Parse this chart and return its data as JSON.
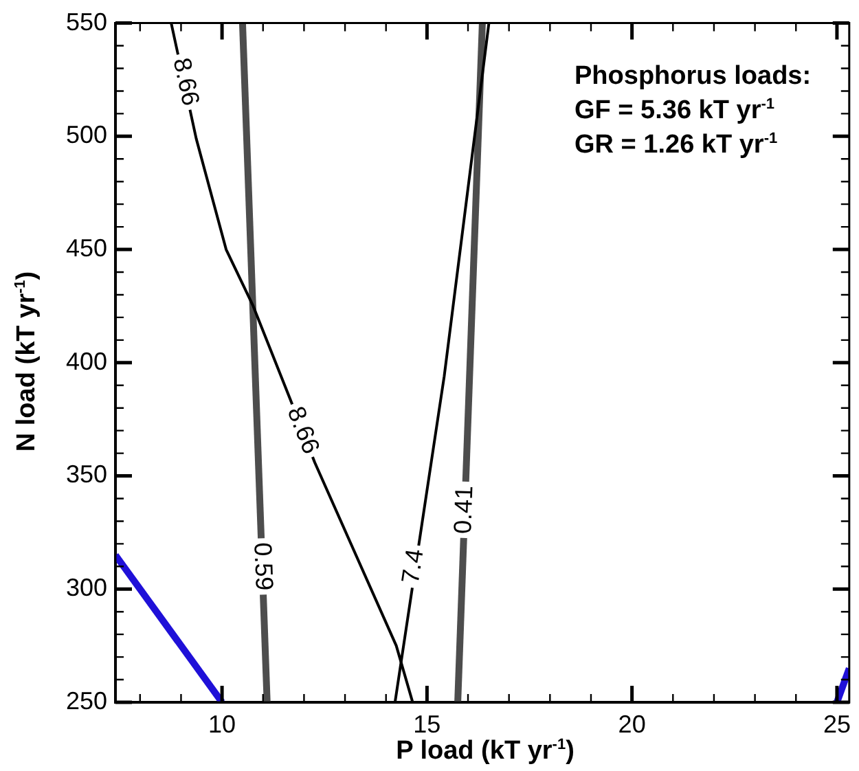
{
  "chart_data": {
    "type": "line",
    "xlabel": "P load (kT yr$^{-1}$)",
    "ylabel": "N load (kT yr$^{-1}$)",
    "xlim": [
      7.4,
      25.3
    ],
    "ylim": [
      250,
      550
    ],
    "xticks": [
      {
        "value": 8,
        "label": null
      },
      {
        "value": 9,
        "label": null
      },
      10,
      {
        "value": 11,
        "label": null
      },
      {
        "value": 12,
        "label": null
      },
      {
        "value": 13,
        "label": null
      },
      {
        "value": 14,
        "label": null
      },
      15,
      {
        "value": 16,
        "label": null
      },
      {
        "value": 17,
        "label": null
      },
      {
        "value": 18,
        "label": null
      },
      {
        "value": 19,
        "label": null
      },
      20,
      {
        "value": 21,
        "label": null
      },
      {
        "value": 22,
        "label": null
      },
      {
        "value": 23,
        "label": null
      },
      {
        "value": 24,
        "label": null
      },
      25
    ],
    "yticks": [
      250,
      {
        "value": 260,
        "label": null
      },
      {
        "value": 270,
        "label": null
      },
      {
        "value": 280,
        "label": null
      },
      {
        "value": 290,
        "label": null
      },
      300,
      {
        "value": 310,
        "label": null
      },
      {
        "value": 320,
        "label": null
      },
      {
        "value": 330,
        "label": null
      },
      {
        "value": 340,
        "label": null
      },
      350,
      {
        "value": 360,
        "label": null
      },
      {
        "value": 370,
        "label": null
      },
      {
        "value": 380,
        "label": null
      },
      {
        "value": 390,
        "label": null
      },
      400,
      {
        "value": 410,
        "label": null
      },
      {
        "value": 420,
        "label": null
      },
      {
        "value": 430,
        "label": null
      },
      {
        "value": 440,
        "label": null
      },
      450,
      {
        "value": 460,
        "label": null
      },
      {
        "value": 470,
        "label": null
      },
      {
        "value": 480,
        "label": null
      },
      {
        "value": 490,
        "label": null
      },
      500,
      {
        "value": 510,
        "label": null
      },
      {
        "value": 520,
        "label": null
      },
      {
        "value": 530,
        "label": null
      },
      {
        "value": 540,
        "label": null
      },
      550
    ],
    "grid": false,
    "legend": false,
    "marker": "none",
    "line_style": "solid",
    "series": [
      {
        "color": "#000000",
        "x": [
          8.76,
          9.37,
          10.1,
          10.76,
          11.66,
          12.26,
          14.25,
          14.65
        ],
        "values": [
          550,
          499,
          450,
          425,
          384,
          356,
          275,
          250
        ]
      },
      {
        "color": "#000000",
        "x": [
          14.22,
          15.42,
          16.51
        ],
        "values": [
          250,
          394,
          550
        ]
      },
      {
        "color": "#4d4d4d",
        "x": [
          10.5,
          11.1
        ],
        "values": [
          550,
          250
        ]
      },
      {
        "color": "#4d4d4d",
        "x": [
          15.75,
          16.35
        ],
        "values": [
          250,
          550
        ]
      },
      {
        "color": "#1f10d8",
        "x": [
          7.4,
          10
        ],
        "values": [
          315,
          250
        ]
      },
      {
        "color": "#1f10d8",
        "x": [
          25,
          25.3
        ],
        "values": [
          250,
          265
        ]
      }
    ],
    "annotations": [
      {
        "text": "8.66",
        "x": 9.1,
        "y": 524
      },
      {
        "text": "8.66",
        "x": 11.96,
        "y": 370
      },
      {
        "text": "7.4",
        "x": 14.68,
        "y": 310
      },
      {
        "text": "0.59",
        "x": 10.98,
        "y": 310
      },
      {
        "text": "0.41",
        "x": 15.92,
        "y": 335
      },
      "Phosphorus loads:",
      "GF = 5.36 kT yr$^{-1}$",
      "GR = 1.26 kT yr$^{-1}$"
    ]
  }
}
